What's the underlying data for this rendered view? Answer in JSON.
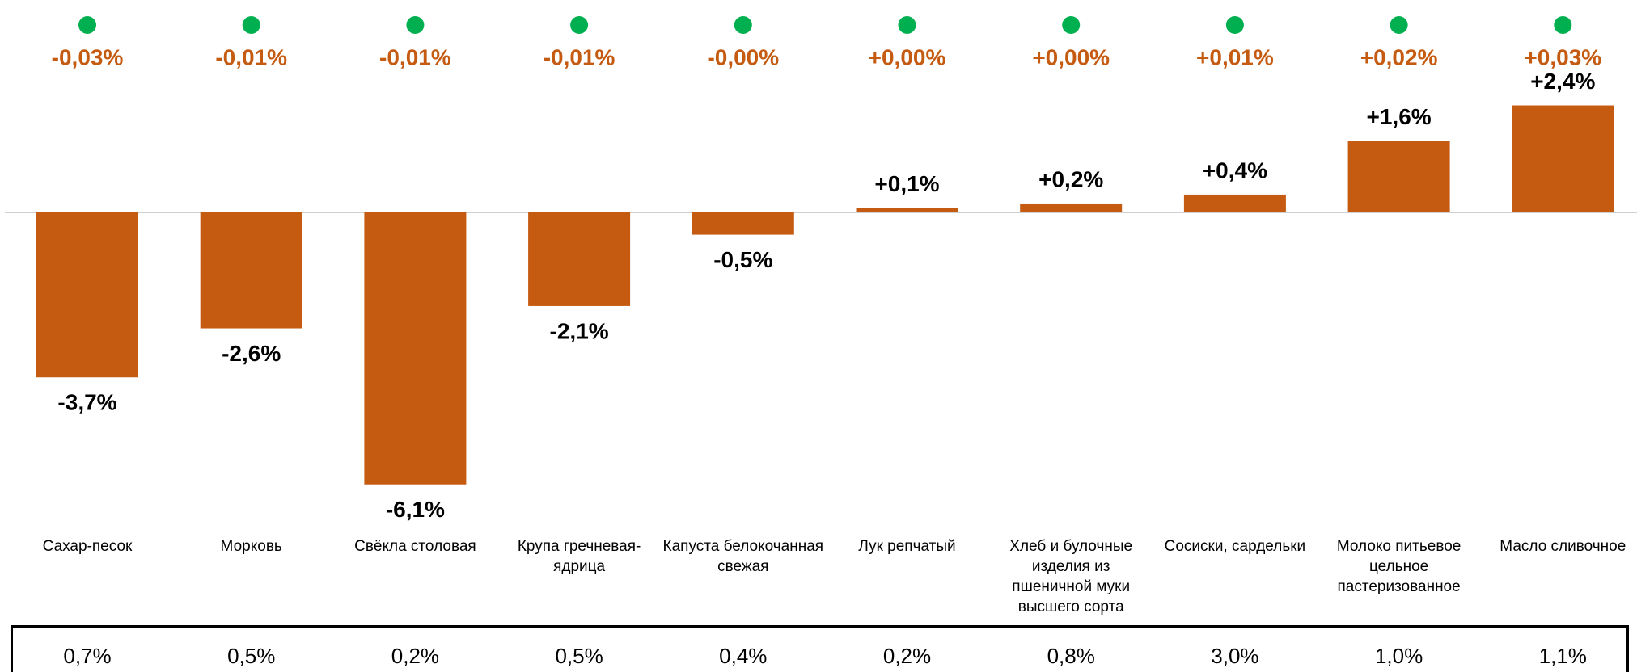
{
  "chart_data": {
    "type": "bar",
    "categories": [
      "Сахар-песок",
      "Морковь",
      "Свёкла столовая",
      "Крупа гречневая-ядрица",
      "Капуста белокочанная свежая",
      "Лук репчатый",
      "Хлеб и булочные изделия из пшеничной муки высшего сорта",
      "Сосиски, сардельки",
      "Молоко питьевое цельное пастеризованное",
      "Масло сливочное"
    ],
    "values": [
      -3.7,
      -2.6,
      -6.1,
      -2.1,
      -0.5,
      0.1,
      0.2,
      0.4,
      1.6,
      2.4
    ],
    "value_labels": [
      "-3,7%",
      "-2,6%",
      "-6,1%",
      "-2,1%",
      "-0,5%",
      "+0,1%",
      "+0,2%",
      "+0,4%",
      "+1,6%",
      "+2,4%"
    ],
    "color": "#c55a11",
    "contributions": [
      -0.03,
      -0.01,
      -0.01,
      -0.01,
      -0.0,
      0.0,
      0.0,
      0.01,
      0.02,
      0.03
    ],
    "contribution_labels": [
      "-0,03%",
      "-0,01%",
      "-0,01%",
      "-0,01%",
      "-0,00%",
      "+0,00%",
      "+0,00%",
      "+0,01%",
      "+0,02%",
      "+0,03%"
    ],
    "weights": [
      0.7,
      0.5,
      0.2,
      0.5,
      0.4,
      0.2,
      0.8,
      3.0,
      1.0,
      1.1
    ],
    "weight_labels": [
      "0,7%",
      "0,5%",
      "0,2%",
      "0,5%",
      "0,4%",
      "0,2%",
      "0,8%",
      "3,0%",
      "1,0%",
      "1,1%"
    ]
  }
}
